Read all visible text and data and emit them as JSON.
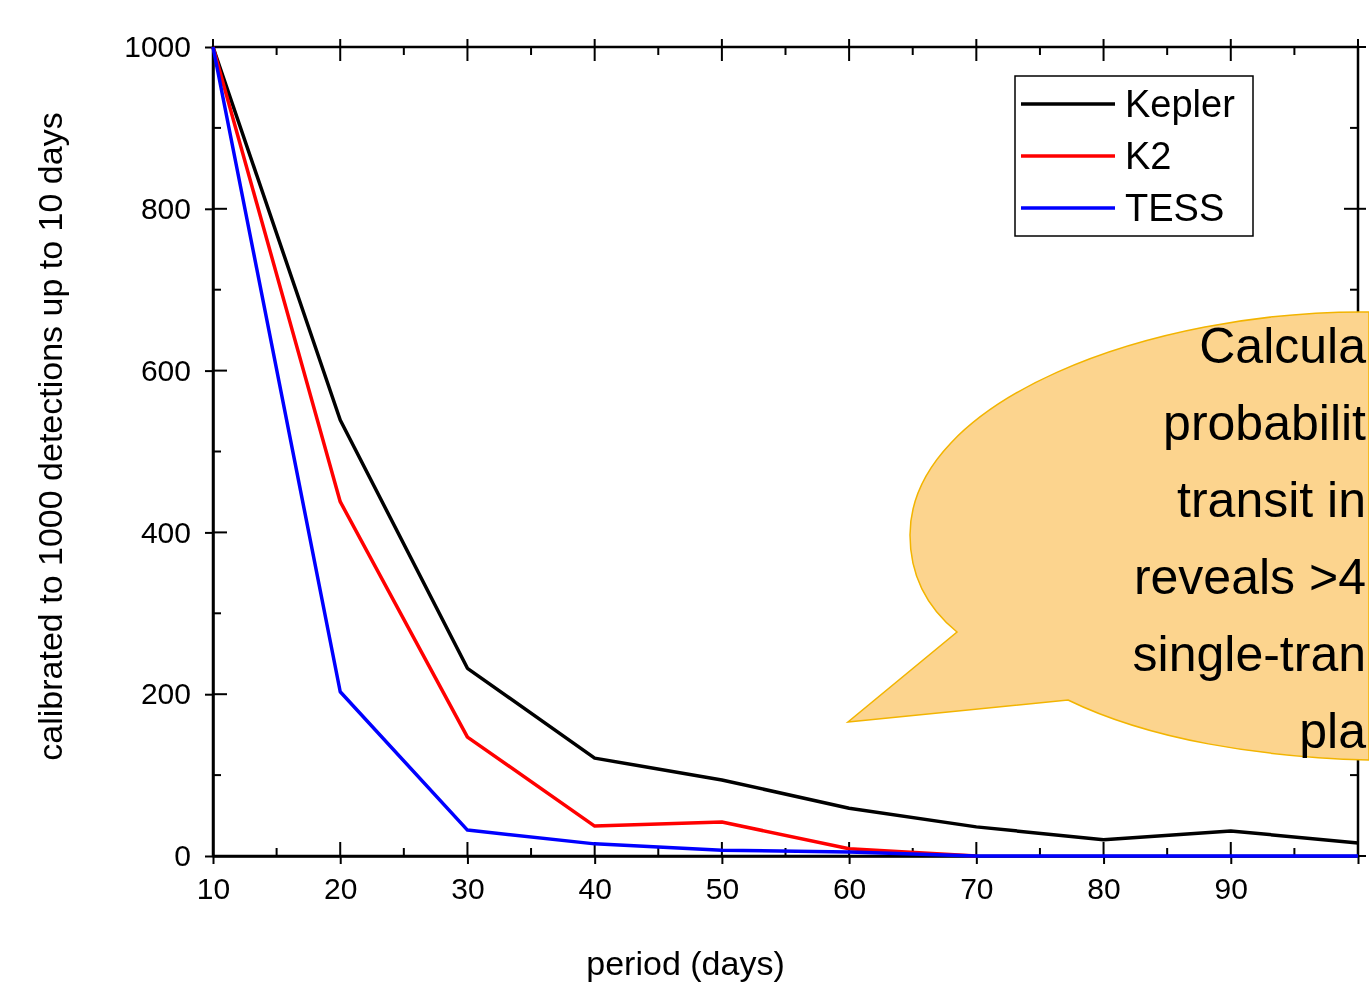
{
  "chart_data": {
    "type": "line",
    "xlabel": "period (days)",
    "ylabel": "calibrated to 1000 detections up to 10 days",
    "x": [
      10,
      20,
      30,
      40,
      50,
      60,
      70,
      80,
      90,
      100
    ],
    "xlim": [
      10,
      100
    ],
    "xticks": [
      10,
      20,
      30,
      40,
      50,
      60,
      70,
      80,
      90,
      {
        "value": 100,
        "label": null
      }
    ],
    "ylim": [
      0,
      1000
    ],
    "yticks": [
      0,
      200,
      400,
      600,
      800,
      1000
    ],
    "series": [
      {
        "name": "Kepler",
        "color": "#000000",
        "values": [
          1000,
          539,
          232,
          121,
          94,
          59,
          36,
          20,
          31,
          16
        ]
      },
      {
        "name": "K2",
        "color": "#ff0000",
        "values": [
          1000,
          438,
          147,
          37,
          42,
          9,
          0,
          null,
          null,
          null
        ]
      },
      {
        "name": "TESS",
        "color": "#0000ff",
        "values": [
          1000,
          203,
          32,
          15,
          7,
          5,
          0,
          0,
          0,
          0
        ]
      }
    ],
    "legend": "top right",
    "grid": false,
    "marker": "none",
    "line_style": "solid",
    "annotations": [
      "Calcula\nprobabilit\ntransit in\nreveals >4\nsingle-tran\npla"
    ]
  }
}
